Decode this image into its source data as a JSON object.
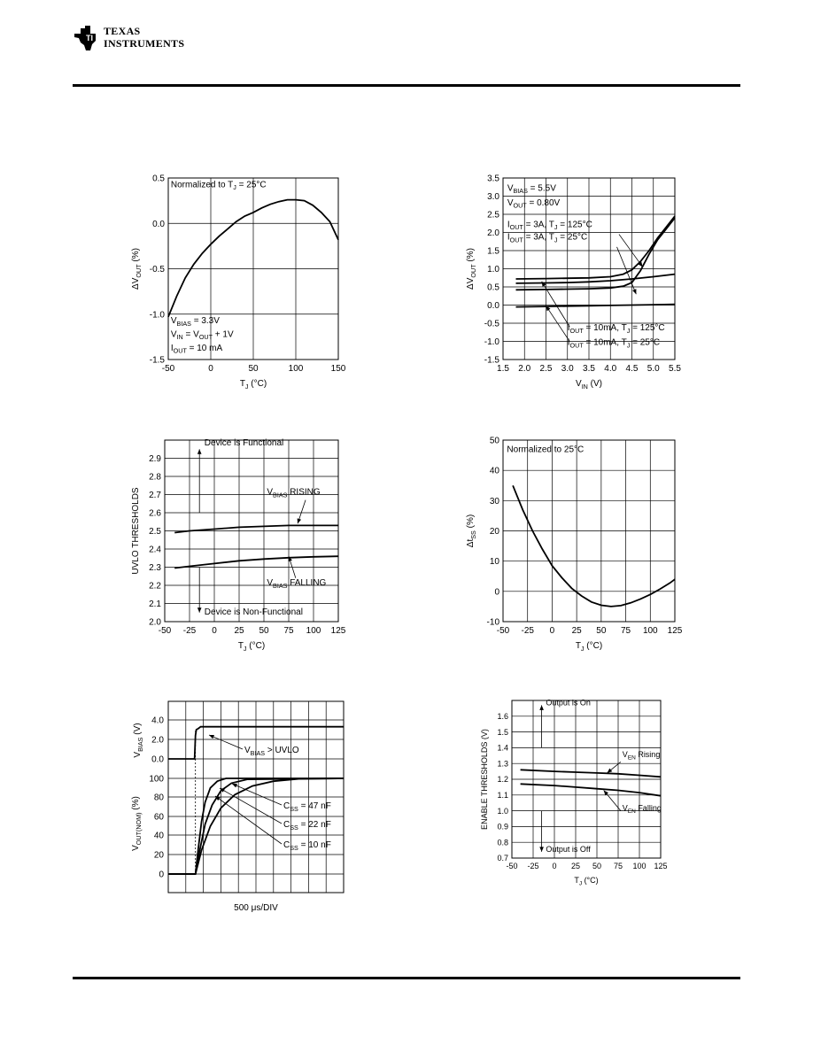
{
  "header": {
    "logo_line1": "Texas",
    "logo_line2": "Instruments"
  },
  "chart_data": [
    {
      "type": "line",
      "xlabel": "T_J (°C)",
      "ylabel": "ΔV_OUT (%)",
      "xlim": [
        -50,
        150
      ],
      "ylim": [
        -1.5,
        0.5
      ],
      "xticks": [
        -50,
        0,
        50,
        100,
        150
      ],
      "yticks": [
        -1.5,
        -1.0,
        -0.5,
        0.0,
        0.5
      ],
      "ytick_labels": [
        "-1.5",
        "-1.0",
        "-0.5",
        "0.0",
        "0.5"
      ],
      "grid": true,
      "annotations": [
        {
          "text": "Normalized to T_J = 25°C",
          "x": -47,
          "y": 0.4
        },
        {
          "text": "V_BIAS = 3.3V",
          "x": -47,
          "y": -1.1
        },
        {
          "text": "V_IN = V_OUT + 1V",
          "x": -47,
          "y": -1.25
        },
        {
          "text": "I_OUT = 10 mA",
          "x": -47,
          "y": -1.4
        }
      ],
      "series": [
        {
          "x": [
            -50,
            -40,
            -30,
            -20,
            -10,
            0,
            10,
            20,
            30,
            40,
            50,
            60,
            70,
            80,
            90,
            100,
            110,
            120,
            130,
            140,
            150
          ],
          "y": [
            -1.03,
            -0.8,
            -0.6,
            -0.45,
            -0.33,
            -0.23,
            -0.14,
            -0.06,
            0.02,
            0.08,
            0.12,
            0.17,
            0.21,
            0.24,
            0.26,
            0.26,
            0.25,
            0.2,
            0.12,
            0.02,
            -0.18
          ]
        }
      ]
    },
    {
      "type": "line",
      "xlabel": "V_IN (V)",
      "ylabel": "ΔV_OUT (%)",
      "xlim": [
        1.5,
        5.5
      ],
      "ylim": [
        -1.5,
        3.5
      ],
      "xticks": [
        1.5,
        2.0,
        2.5,
        3.0,
        3.5,
        4.0,
        4.5,
        5.0,
        5.5
      ],
      "xtick_labels": [
        "1.5",
        "2.0",
        "2.5",
        "3.0",
        "3.5",
        "4.0",
        "4.5",
        "5.0",
        "5.5"
      ],
      "yticks": [
        -1.5,
        -1.0,
        -0.5,
        0.0,
        0.5,
        1.0,
        1.5,
        2.0,
        2.5,
        3.0,
        3.5
      ],
      "ytick_labels": [
        "-1.5",
        "-1.0",
        "-0.5",
        "0.0",
        "0.5",
        "1.0",
        "1.5",
        "2.0",
        "2.5",
        "3.0",
        "3.5"
      ],
      "grid": true,
      "annotations": [
        {
          "text": "V_BIAS = 5.5V",
          "x": 1.6,
          "y": 3.15
        },
        {
          "text": "V_OUT = 0.80V",
          "x": 1.6,
          "y": 2.75
        },
        {
          "text": "I_OUT = 3A, T_J = 125°C",
          "x": 1.6,
          "y": 2.15
        },
        {
          "text": "I_OUT = 3A, T_J = 25°C",
          "x": 1.6,
          "y": 1.8
        },
        {
          "text": "I_OUT = 10mA, T_J = 125°C",
          "x": 3.0,
          "y": -0.7
        },
        {
          "text": "I_OUT = 10mA, T_J = 25°C",
          "x": 3.0,
          "y": -1.1
        }
      ],
      "series": [
        {
          "name": "I_OUT = 3A, T_J = 125°C",
          "x": [
            1.8,
            2.5,
            3.0,
            3.5,
            4.0,
            4.3,
            4.5,
            4.7,
            4.9,
            5.1,
            5.3,
            5.5
          ],
          "y": [
            0.72,
            0.73,
            0.74,
            0.75,
            0.78,
            0.85,
            0.97,
            1.2,
            1.5,
            1.85,
            2.15,
            2.45
          ]
        },
        {
          "name": "I_OUT = 3A, T_J = 25°C",
          "x": [
            1.8,
            2.5,
            3.0,
            3.5,
            4.0,
            4.3,
            4.5,
            4.7,
            4.9,
            5.1,
            5.3,
            5.5
          ],
          "y": [
            0.42,
            0.43,
            0.44,
            0.45,
            0.47,
            0.52,
            0.62,
            0.95,
            1.4,
            1.8,
            2.1,
            2.4
          ]
        },
        {
          "name": "I_OUT = 10mA, T_J = 125°C",
          "x": [
            1.8,
            2.5,
            3.0,
            3.5,
            4.0,
            4.5,
            5.0,
            5.5
          ],
          "y": [
            0.6,
            0.61,
            0.62,
            0.64,
            0.67,
            0.72,
            0.78,
            0.85
          ]
        },
        {
          "name": "I_OUT = 10mA, T_J = 25°C",
          "x": [
            1.8,
            2.5,
            3.0,
            3.5,
            4.0,
            4.5,
            5.0,
            5.5
          ],
          "y": [
            -0.05,
            -0.04,
            -0.03,
            -0.02,
            -0.01,
            0.0,
            0.01,
            0.02
          ]
        }
      ]
    },
    {
      "type": "line",
      "xlabel": "T_J (°C)",
      "ylabel": "UVLO THRESHOLDS",
      "xlim": [
        -50,
        125
      ],
      "ylim": [
        2.0,
        3.0
      ],
      "xticks": [
        -50,
        -25,
        0,
        25,
        50,
        75,
        100,
        125
      ],
      "yticks": [
        2.0,
        2.1,
        2.2,
        2.3,
        2.4,
        2.5,
        2.6,
        2.7,
        2.8,
        2.9
      ],
      "ytick_labels": [
        "2.0",
        "2.1",
        "2.2",
        "2.3",
        "2.4",
        "2.5",
        "2.6",
        "2.7",
        "2.8",
        "2.9"
      ],
      "grid": true,
      "annotations": [
        {
          "text": "Device is Functional",
          "x": -10,
          "y": 2.97
        },
        {
          "text": "Device is Non-Functional",
          "x": -10,
          "y": 2.04
        },
        {
          "text": "V_BIAS RISING",
          "x": 53,
          "y": 2.7
        },
        {
          "text": "V_BIAS FALLING",
          "x": 53,
          "y": 2.2
        }
      ],
      "series": [
        {
          "name": "V_BIAS RISING",
          "x": [
            -40,
            -25,
            0,
            25,
            50,
            75,
            100,
            125
          ],
          "y": [
            2.49,
            2.5,
            2.51,
            2.52,
            2.525,
            2.53,
            2.53,
            2.53
          ]
        },
        {
          "name": "V_BIAS FALLING",
          "x": [
            -40,
            -25,
            0,
            25,
            50,
            75,
            100,
            125
          ],
          "y": [
            2.295,
            2.305,
            2.32,
            2.335,
            2.345,
            2.352,
            2.357,
            2.36
          ]
        }
      ]
    },
    {
      "type": "line",
      "xlabel": "T_J (°C)",
      "ylabel": "Δt_SS (%)",
      "xlim": [
        -50,
        125
      ],
      "ylim": [
        -10,
        50
      ],
      "xticks": [
        -50,
        -25,
        0,
        25,
        50,
        75,
        100,
        125
      ],
      "yticks": [
        -10,
        0,
        10,
        20,
        30,
        40,
        50
      ],
      "grid": true,
      "annotations": [
        {
          "text": "Normalized to 25°C",
          "x": -46,
          "y": 46
        }
      ],
      "series": [
        {
          "x": [
            -40,
            -30,
            -20,
            -10,
            0,
            10,
            20,
            30,
            40,
            50,
            60,
            70,
            80,
            90,
            100,
            110,
            120,
            125
          ],
          "y": [
            35,
            27,
            20,
            14,
            8.5,
            4.5,
            1.0,
            -1.5,
            -3.5,
            -4.6,
            -5.0,
            -4.7,
            -3.8,
            -2.5,
            -1.0,
            0.8,
            2.8,
            4.0
          ]
        }
      ]
    },
    {
      "type": "line",
      "xlabel": "500 μs/DIV",
      "ylabel_top": "V_BIAS (V)",
      "ylabel_bottom": "V_OUT(NOM) (%)",
      "top_yticks": [
        "4.0",
        "2.0",
        "0.0"
      ],
      "bottom_yticks": [
        "100",
        "80",
        "60",
        "40",
        "20",
        "0"
      ],
      "grid": true,
      "annotations": [
        {
          "text": "V_BIAS > UVLO"
        },
        {
          "text": "C_SS = 47 nF"
        },
        {
          "text": "C_SS = 22 nF"
        },
        {
          "text": "C_SS = 10 nF"
        }
      ],
      "series": [
        {
          "name": "V_BIAS",
          "x": [
            0,
            1.5,
            1.55,
            1.6,
            1.7,
            1.85,
            10
          ],
          "y": [
            0,
            0,
            2.4,
            3.0,
            3.1,
            3.3,
            3.3
          ]
        },
        {
          "name": "C_SS = 10 nF",
          "x": [
            0,
            1.55,
            1.7,
            1.9,
            2.1,
            2.4,
            2.8,
            3.3,
            10
          ],
          "y": [
            0,
            0,
            25,
            55,
            75,
            90,
            97,
            100,
            100
          ]
        },
        {
          "name": "C_SS = 22 nF",
          "x": [
            0,
            1.55,
            1.8,
            2.1,
            2.5,
            3.0,
            3.6,
            4.5,
            10
          ],
          "y": [
            0,
            0,
            25,
            52,
            72,
            87,
            95,
            99,
            100
          ]
        },
        {
          "name": "C_SS = 47 nF",
          "x": [
            0,
            1.55,
            1.9,
            2.4,
            3.0,
            3.8,
            4.8,
            6.0,
            7.5,
            10
          ],
          "y": [
            0,
            0,
            25,
            50,
            69,
            83,
            92,
            97,
            99.5,
            100
          ]
        }
      ]
    },
    {
      "type": "line",
      "xlabel": "T_J (°C)",
      "ylabel": "ENABLE THRESHOLDS (V)",
      "xlim": [
        -50,
        125
      ],
      "ylim": [
        0.7,
        1.7
      ],
      "xticks": [
        -50,
        -25,
        0,
        25,
        50,
        75,
        100,
        125
      ],
      "yticks": [
        0.7,
        0.8,
        0.9,
        1.0,
        1.1,
        1.2,
        1.3,
        1.4,
        1.5,
        1.6
      ],
      "ytick_labels": [
        "0.7",
        "0.8",
        "0.9",
        "1.0",
        "1.1",
        "1.2",
        "1.3",
        "1.4",
        "1.5",
        "1.6"
      ],
      "grid": true,
      "annotations": [
        {
          "text": "Output is On",
          "x": -10,
          "y": 1.67
        },
        {
          "text": "Output is Off",
          "x": -10,
          "y": 0.74
        },
        {
          "text": "V_EN Rising",
          "x": 80,
          "y": 1.34
        },
        {
          "text": "V_EN Falling",
          "x": 80,
          "y": 1.0
        }
      ],
      "series": [
        {
          "name": "V_EN Rising",
          "x": [
            -40,
            0,
            25,
            50,
            75,
            100,
            125
          ],
          "y": [
            1.26,
            1.25,
            1.245,
            1.24,
            1.235,
            1.225,
            1.215
          ]
        },
        {
          "name": "V_EN Falling",
          "x": [
            -40,
            0,
            25,
            50,
            75,
            100,
            125
          ],
          "y": [
            1.17,
            1.16,
            1.15,
            1.14,
            1.13,
            1.115,
            1.095
          ]
        }
      ]
    }
  ]
}
